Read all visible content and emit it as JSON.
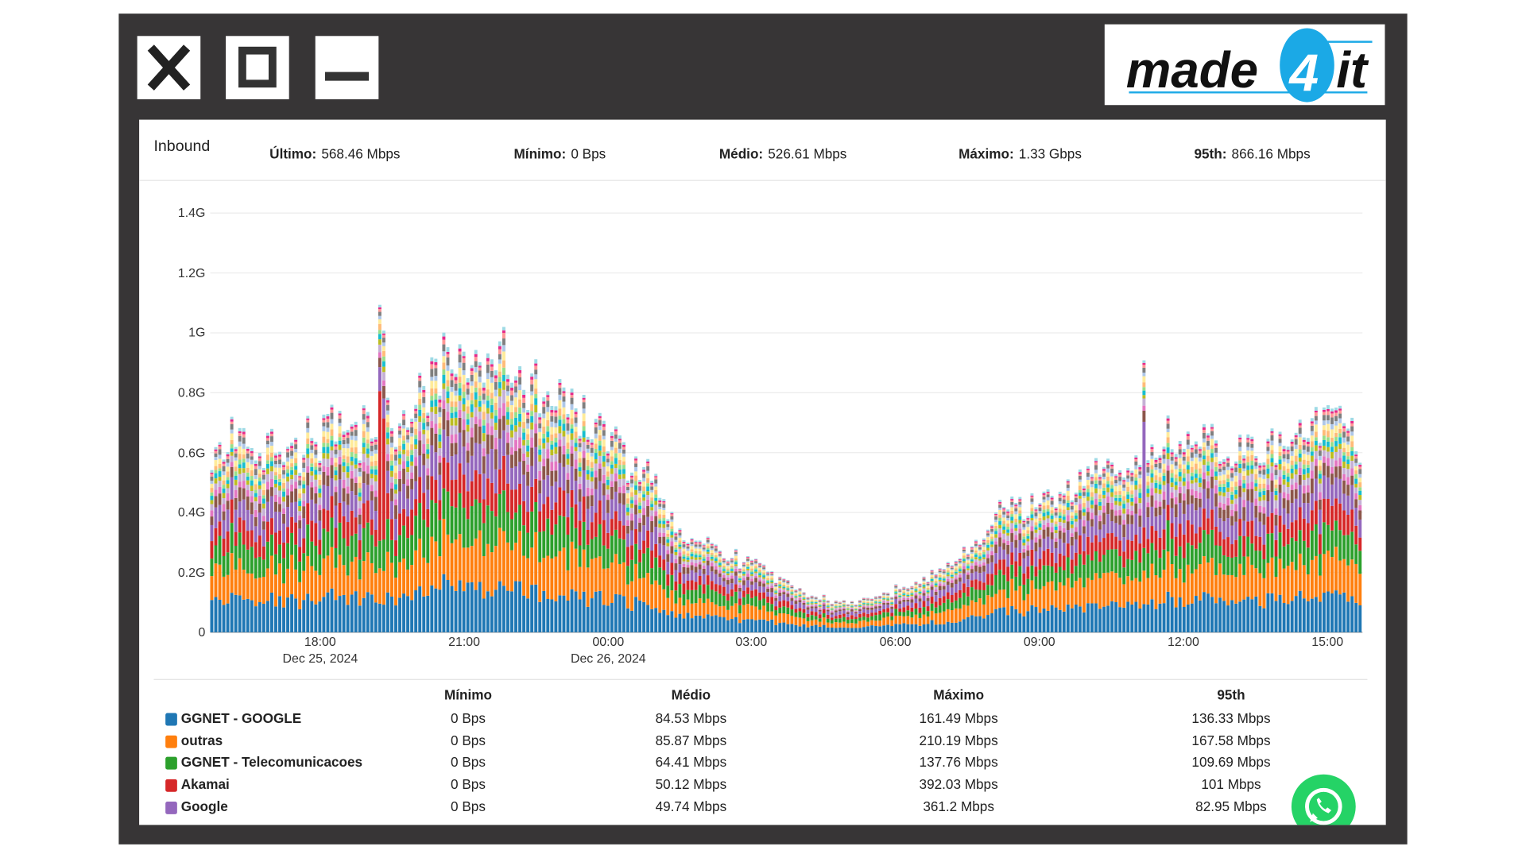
{
  "window": {
    "close_label": "close",
    "maximize_label": "maximize",
    "minimize_label": "minimize"
  },
  "logo": {
    "text_a": "made",
    "text_b": "4",
    "text_c": "it",
    "accent": "#1ba9e6"
  },
  "summary": {
    "title": "Inbound",
    "stats": [
      {
        "label": "Último:",
        "value": "568.46 Mbps"
      },
      {
        "label": "Mínimo:",
        "value": "0 Bps"
      },
      {
        "label": "Médio:",
        "value": "526.61 Mbps"
      },
      {
        "label": "Máximo:",
        "value": "1.33 Gbps"
      },
      {
        "label": "95th:",
        "value": "866.16 Mbps"
      }
    ]
  },
  "chart_data": {
    "type": "bar",
    "stacked": true,
    "y_ticks": [
      "0",
      "0.2G",
      "0.4G",
      "0.6G",
      "0.8G",
      "1G",
      "1.2G",
      "1.4G"
    ],
    "ylim": [
      0,
      1.4
    ],
    "x_ticks": [
      "18:00",
      "21:00",
      "00:00",
      "03:00",
      "06:00",
      "09:00",
      "12:00",
      "15:00"
    ],
    "x_dates": [
      "Dec 25, 2024",
      "Dec 26, 2024"
    ],
    "start": "15:45",
    "interval_minutes": 5,
    "bars": 288,
    "total_profile_gbps": [
      [
        "15:45",
        0.57
      ],
      [
        "16:24",
        0.65
      ],
      [
        "17:25",
        0.6
      ],
      [
        "18:13",
        0.68
      ],
      [
        "19:02",
        0.71
      ],
      [
        "19:51",
        0.71
      ],
      [
        "20:15",
        0.81
      ],
      [
        "20:47",
        0.92
      ],
      [
        "21:16",
        0.84
      ],
      [
        "21:46",
        0.97
      ],
      [
        "22:17",
        0.83
      ],
      [
        "22:53",
        0.78
      ],
      [
        "23:30",
        0.7
      ],
      [
        "00:18",
        0.63
      ],
      [
        "00:43",
        0.55
      ],
      [
        "01:07",
        0.49
      ],
      [
        "01:31",
        0.33
      ],
      [
        "02:20",
        0.26
      ],
      [
        "03:00",
        0.24
      ],
      [
        "03:34",
        0.18
      ],
      [
        "04:09",
        0.13
      ],
      [
        "04:58",
        0.1
      ],
      [
        "05:34",
        0.12
      ],
      [
        "06:23",
        0.16
      ],
      [
        "07:12",
        0.24
      ],
      [
        "07:48",
        0.31
      ],
      [
        "08:12",
        0.44
      ],
      [
        "09:00",
        0.42
      ],
      [
        "09:38",
        0.5
      ],
      [
        "10:27",
        0.53
      ],
      [
        "11:39",
        0.62
      ],
      [
        "12:16",
        0.67
      ],
      [
        "12:52",
        0.59
      ],
      [
        "13:41",
        0.62
      ],
      [
        "14:29",
        0.65
      ],
      [
        "15:13",
        0.72
      ],
      [
        "15:40",
        0.58
      ]
    ],
    "spikes": [
      [
        "19:15",
        "Akamai",
        0.45
      ],
      [
        "19:20",
        "Akamai",
        0.35
      ],
      [
        "11:10",
        "Google",
        0.3
      ]
    ],
    "series": [
      {
        "name": "GGNET - GOOGLE",
        "color": "#1f77b4",
        "share": 0.17
      },
      {
        "name": "outras",
        "color": "#ff7f0e",
        "share": 0.17
      },
      {
        "name": "GGNET - Telecomunicacoes",
        "color": "#2ca02c",
        "share": 0.13
      },
      {
        "name": "Akamai",
        "color": "#d62728",
        "share": 0.1
      },
      {
        "name": "Google",
        "color": "#9467bd",
        "share": 0.1
      },
      {
        "name": "",
        "color": "#8c564b",
        "share": 0.06
      },
      {
        "name": "",
        "color": "#e377c2",
        "share": 0.035
      },
      {
        "name": "",
        "color": "#c5b0d5",
        "share": 0.035
      },
      {
        "name": "",
        "color": "#bcbd22",
        "share": 0.025
      },
      {
        "name": "",
        "color": "#17becf",
        "share": 0.025
      },
      {
        "name": "",
        "color": "#98df8a",
        "share": 0.02
      },
      {
        "name": "",
        "color": "#ffbb78",
        "share": 0.025
      },
      {
        "name": "",
        "color": "#ffeb9a",
        "share": 0.03
      },
      {
        "name": "",
        "color": "#aec7e8",
        "share": 0.02
      },
      {
        "name": "",
        "color": "#7f7f7f",
        "share": 0.025
      },
      {
        "name": "",
        "color": "#ff9896",
        "share": 0.015
      },
      {
        "name": "",
        "color": "#e7298a",
        "share": 0.01
      },
      {
        "name": "",
        "color": "#9edae5",
        "share": 0.015
      }
    ]
  },
  "table": {
    "headers": [
      "Mínimo",
      "Médio",
      "Máximo",
      "95th"
    ],
    "rows": [
      {
        "name": "GGNET - GOOGLE",
        "color": "#1f77b4",
        "min": "0 Bps",
        "avg": "84.53 Mbps",
        "max": "161.49 Mbps",
        "p95": "136.33 Mbps"
      },
      {
        "name": "outras",
        "color": "#ff7f0e",
        "min": "0 Bps",
        "avg": "85.87 Mbps",
        "max": "210.19 Mbps",
        "p95": "167.58 Mbps"
      },
      {
        "name": "GGNET - Telecomunicacoes",
        "color": "#2ca02c",
        "min": "0 Bps",
        "avg": "64.41 Mbps",
        "max": "137.76 Mbps",
        "p95": "109.69 Mbps"
      },
      {
        "name": "Akamai",
        "color": "#d62728",
        "min": "0 Bps",
        "avg": "50.12 Mbps",
        "max": "392.03 Mbps",
        "p95": "101 Mbps"
      },
      {
        "name": "Google",
        "color": "#9467bd",
        "min": "0 Bps",
        "avg": "49.74 Mbps",
        "max": "361.2 Mbps",
        "p95": "82.95 Mbps"
      }
    ]
  }
}
